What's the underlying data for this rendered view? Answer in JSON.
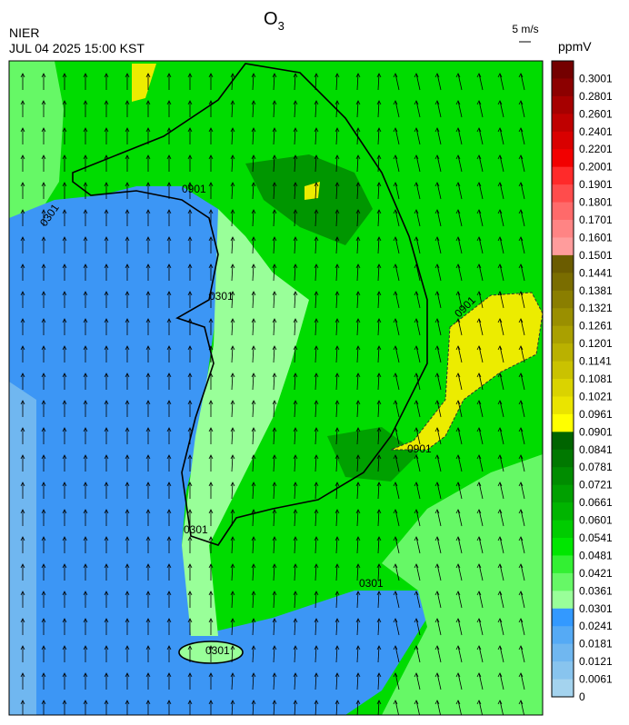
{
  "header": {
    "source": "NIER",
    "datetime": "JUL 04 2025 15:00 KST",
    "title": "O",
    "title_sub": "3",
    "wind_scale": "5 m/s",
    "unit": "ppmV"
  },
  "colorbar": {
    "levels": [
      {
        "label": "0.3001",
        "color": "#740000"
      },
      {
        "label": "0.2801",
        "color": "#8c0000"
      },
      {
        "label": "0.2601",
        "color": "#a60000"
      },
      {
        "label": "0.2401",
        "color": "#bf0000"
      },
      {
        "label": "0.2201",
        "color": "#d90000"
      },
      {
        "label": "0.2001",
        "color": "#f20000"
      },
      {
        "label": "0.1901",
        "color": "#ff2a2a"
      },
      {
        "label": "0.1801",
        "color": "#ff4c4c"
      },
      {
        "label": "0.1701",
        "color": "#ff6a6a"
      },
      {
        "label": "0.1601",
        "color": "#ff8484"
      },
      {
        "label": "0.1501",
        "color": "#ff9c9c"
      },
      {
        "label": "0.1441",
        "color": "#6b5c00"
      },
      {
        "label": "0.1381",
        "color": "#7a6d00"
      },
      {
        "label": "0.1321",
        "color": "#8a7e00"
      },
      {
        "label": "0.1261",
        "color": "#9a8f00"
      },
      {
        "label": "0.1201",
        "color": "#aaa000"
      },
      {
        "label": "0.1141",
        "color": "#bab100"
      },
      {
        "label": "0.1081",
        "color": "#cac200"
      },
      {
        "label": "0.1021",
        "color": "#dad300"
      },
      {
        "label": "0.0961",
        "color": "#eae400"
      },
      {
        "label": "0.0901",
        "color": "#ffff00"
      },
      {
        "label": "0.0841",
        "color": "#006400"
      },
      {
        "label": "0.0781",
        "color": "#007800"
      },
      {
        "label": "0.0721",
        "color": "#008c00"
      },
      {
        "label": "0.0661",
        "color": "#00a000"
      },
      {
        "label": "0.0601",
        "color": "#00b400"
      },
      {
        "label": "0.0541",
        "color": "#00cc00"
      },
      {
        "label": "0.0481",
        "color": "#00e600"
      },
      {
        "label": "0.0421",
        "color": "#33f033"
      },
      {
        "label": "0.0361",
        "color": "#66f866"
      },
      {
        "label": "0.0301",
        "color": "#99ff99"
      },
      {
        "label": "0.0241",
        "color": "#3399ff"
      },
      {
        "label": "0.0181",
        "color": "#55aaf5"
      },
      {
        "label": "0.0121",
        "color": "#70b7f0"
      },
      {
        "label": "0.0061",
        "color": "#88c4ee"
      },
      {
        "label": "0",
        "color": "#a4d3ee"
      }
    ]
  },
  "contour_labels": [
    "0901",
    "0301",
    "0301",
    "0901",
    "0901",
    "0301",
    "0301",
    "0301"
  ]
}
